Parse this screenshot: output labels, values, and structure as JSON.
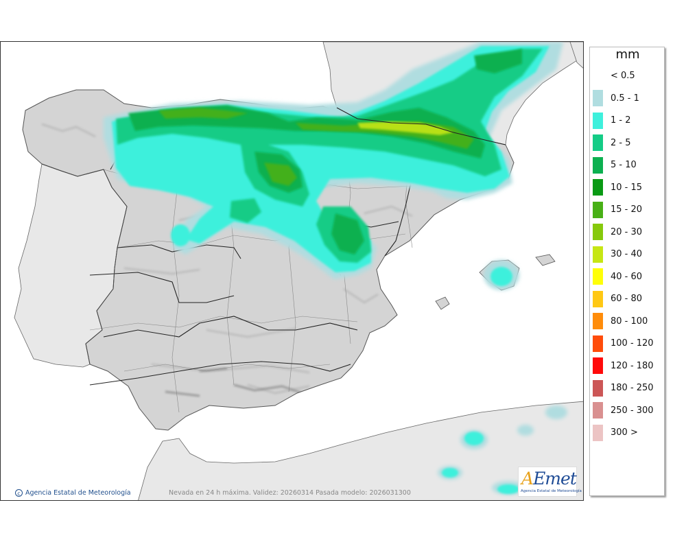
{
  "legend": {
    "unit": "mm",
    "lowest_label": "< 0.5",
    "classes": [
      {
        "label": "0.5 - 1",
        "color": "#b0dde0"
      },
      {
        "label": "1 - 2",
        "color": "#3ef0dc"
      },
      {
        "label": "2 - 5",
        "color": "#14cc86"
      },
      {
        "label": "5 - 10",
        "color": "#0cb050"
      },
      {
        "label": "10 - 15",
        "color": "#099a14"
      },
      {
        "label": "15 - 20",
        "color": "#48b016"
      },
      {
        "label": "20 - 30",
        "color": "#86c90c"
      },
      {
        "label": "30 - 40",
        "color": "#c6e614"
      },
      {
        "label": "40 - 60",
        "color": "#ffff08"
      },
      {
        "label": "60 - 80",
        "color": "#ffc814"
      },
      {
        "label": "80 - 100",
        "color": "#ff8c0a"
      },
      {
        "label": "100 - 120",
        "color": "#ff4c0a"
      },
      {
        "label": "120 - 180",
        "color": "#ff0a0a"
      },
      {
        "label": "180 - 250",
        "color": "#cc5656"
      },
      {
        "label": "250 - 300",
        "color": "#d99090"
      },
      {
        "label": "300 >",
        "color": "#ecc4c4"
      }
    ]
  },
  "credit": "Agencia Estatal de Meteorología",
  "caption": "Nevada en 24 h máxima. Validez: 20260314 Pasada modelo: 2026031300",
  "logo": {
    "word_a": "A",
    "word_rest": "Emet",
    "subtitle": "Agencia Estatal de Meteorología"
  },
  "colors": {
    "sea": "#ffffff",
    "land": "#e8e8e8",
    "spain": "#d4d4d4"
  }
}
